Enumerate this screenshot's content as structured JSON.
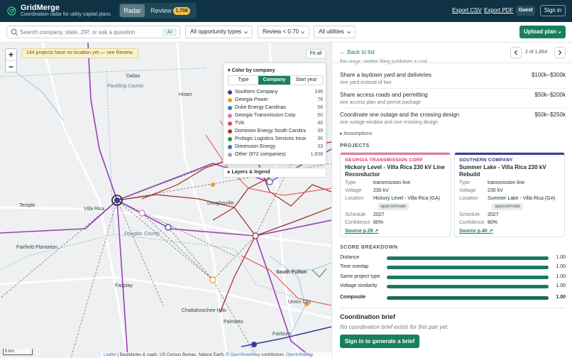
{
  "app": {
    "name": "GridMerge",
    "tagline": "Coordination radar for utility capital plans",
    "tab_radar": "Radar",
    "tab_review": "Review",
    "review_count": "1,706",
    "export_csv": "Export CSV",
    "export_pdf": "Export PDF",
    "guest": "Guest",
    "sign_in": "Sign in"
  },
  "filters": {
    "search_placeholder": "Search company, state, ZIP, or ask a question",
    "ai": "AI",
    "types": "All opportunity types",
    "review": "Review < 0.70",
    "utilities": "All utilities",
    "upload": "Upload plan"
  },
  "map": {
    "no_location_notice": "144 projects have no location yet — see Review.",
    "fit_all": "Fit all",
    "zoom_in": "+",
    "zoom_out": "−",
    "color_by_title": "▾ Color by company",
    "color_modes": [
      "Type",
      "Company",
      "Start year"
    ],
    "active_mode": "Company",
    "legend": [
      {
        "name": "Southern Company",
        "count": "146",
        "color": "#3b3b9a"
      },
      {
        "name": "Georgia Power",
        "count": "78",
        "color": "#e7a21b"
      },
      {
        "name": "Duke Energy Carolinas",
        "count": "58",
        "color": "#2e86c1"
      },
      {
        "name": "Georgia Transmission Corp",
        "count": "50",
        "color": "#e57aa6"
      },
      {
        "name": "TVA",
        "count": "40",
        "color": "#e04848"
      },
      {
        "name": "Dominion Energy South Carolina",
        "count": "39",
        "color": "#a53a2a"
      },
      {
        "name": "Prologis Logistics Services Incorp…",
        "count": "36",
        "color": "#2f8f3a"
      },
      {
        "name": "Dimension Energy",
        "count": "33",
        "color": "#3e6fb0"
      },
      {
        "name": "Other (972 companies)",
        "count": "1,608",
        "color": "#9aa3a8"
      }
    ],
    "layers": "▸ Layers & legend",
    "labels": {
      "dallas": "Dallas",
      "paulding": "Paulding County",
      "hiram": "Hiram",
      "temple": "Temple",
      "villa_rica": "Villa Rica",
      "douglasville": "Douglasville",
      "douglas_county": "Douglas County",
      "fairfield": "Fairfield Plantation",
      "fairplay": "Fairplay",
      "south_fulton": "South Fulton",
      "union_city": "Union City",
      "chattahoochee": "Chattahoochee Hills",
      "palmetto": "Palmetto",
      "fairburn": "Fairburn"
    },
    "scale": "5 km",
    "attribution_leaflet": "Leaflet",
    "attribution_mid": " | Boundaries & roads: US Census Bureau, Natural Earth, © ",
    "attribution_osm": "OpenStreetMap",
    "attribution_mid2": " contributors, ",
    "attribution_oim": "OpenInfraMap"
  },
  "panel": {
    "back": "← Back to list",
    "pager": "2 of 1,864",
    "cropped_text": "flat range, neither filing publishes a cost",
    "steps": [
      {
        "title": "Share a laydown yard and deliveries",
        "sub": "one yard instead of two",
        "cost": "$100k–$300k"
      },
      {
        "title": "Share access roads and permitting",
        "sub": "one access plan and permit package",
        "cost": "$50k–$200k"
      },
      {
        "title": "Coordinate one outage and the crossing design",
        "sub": "one outage window and one crossing design",
        "cost": "$50k–$250k"
      }
    ],
    "assumptions": "▸ Assumptions",
    "projects_header": "PROJECTS",
    "projects": [
      {
        "company": "GEORGIA TRANSMISSION CORP",
        "company_color": "#d6336c",
        "top_color": "#e57aa6",
        "title": "Hickory Level - Villa Rica 230 kV Line Reconductor",
        "type_label": "Type",
        "type": "transmission line",
        "voltage_label": "Voltage",
        "voltage": "230 kV",
        "location_label": "Location",
        "location": "Hickory Level - Villa Rica (GA)",
        "approx": "approximate",
        "schedule_label": "Schedule",
        "schedule": "2027",
        "confidence_label": "Confidence",
        "confidence": "80%",
        "source": "Source p.29 ↗"
      },
      {
        "company": "SOUTHERN COMPANY",
        "company_color": "#2d2d8a",
        "top_color": "#3b3b9a",
        "title": "Summer Lake - Villa Rica 230 kV Rebuild",
        "type_label": "Type",
        "type": "transmission line",
        "voltage_label": "Voltage",
        "voltage": "230 kV",
        "location_label": "Location",
        "location": "Summer Lake - Villa Rica (GA)",
        "approx": "approximate",
        "schedule_label": "Schedule",
        "schedule": "2027",
        "confidence_label": "Confidence",
        "confidence": "80%",
        "source": "Source p.40 ↗"
      }
    ],
    "score_header": "SCORE BREAKDOWN",
    "scores": [
      {
        "label": "Distance",
        "value": "1.00",
        "fraction": 1.0
      },
      {
        "label": "Time overlap",
        "value": "1.00",
        "fraction": 1.0
      },
      {
        "label": "Same project type",
        "value": "1.00",
        "fraction": 1.0
      },
      {
        "label": "Voltage similarity",
        "value": "1.00",
        "fraction": 1.0
      },
      {
        "label": "Composite",
        "value": "1.00",
        "fraction": 1.0
      }
    ],
    "brief_title": "Coordination brief",
    "brief_empty": "No coordination brief exists for this pair yet.",
    "brief_button": "Sign in to generate a brief"
  }
}
